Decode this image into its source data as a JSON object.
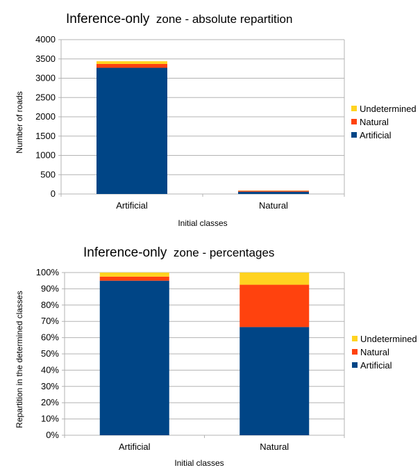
{
  "chart_data": [
    {
      "type": "bar",
      "stacked": true,
      "title": "Inference-only",
      "title_rest": "zone - absolute repartition",
      "xlabel": "Initial classes",
      "ylabel": "Number of roads",
      "categories": [
        "Artificial",
        "Natural"
      ],
      "ylim": [
        0,
        4000
      ],
      "yticks": [
        "0",
        "500",
        "1000",
        "1500",
        "2000",
        "2500",
        "3000",
        "3500",
        "4000"
      ],
      "ytick_values": [
        0,
        500,
        1000,
        1500,
        2000,
        2500,
        3000,
        3500,
        4000
      ],
      "grid": true,
      "legend_position": "right",
      "series": [
        {
          "name": "Artificial",
          "color": "#004586",
          "values": [
            3270,
            60
          ]
        },
        {
          "name": "Natural",
          "color": "#ff420e",
          "values": [
            100,
            25
          ]
        },
        {
          "name": "Undetermined",
          "color": "#ffd320",
          "values": [
            70,
            5
          ]
        }
      ]
    },
    {
      "type": "bar",
      "stacked": true,
      "title": "Inference-only",
      "title_rest": "zone - percentages",
      "xlabel": "Initial classes",
      "ylabel": "Repartition in the determined classes",
      "categories": [
        "Artificial",
        "Natural"
      ],
      "ylim": [
        0,
        100
      ],
      "yticks": [
        "0%",
        "10%",
        "20%",
        "30%",
        "40%",
        "50%",
        "60%",
        "70%",
        "80%",
        "90%",
        "100%"
      ],
      "ytick_values": [
        0,
        10,
        20,
        30,
        40,
        50,
        60,
        70,
        80,
        90,
        100
      ],
      "grid": true,
      "legend_position": "right",
      "series": [
        {
          "name": "Artificial",
          "color": "#004586",
          "values": [
            95,
            66.5
          ]
        },
        {
          "name": "Natural",
          "color": "#ff420e",
          "values": [
            2.5,
            26
          ]
        },
        {
          "name": "Undetermined",
          "color": "#ffd320",
          "values": [
            2.5,
            7.5
          ]
        }
      ]
    }
  ]
}
